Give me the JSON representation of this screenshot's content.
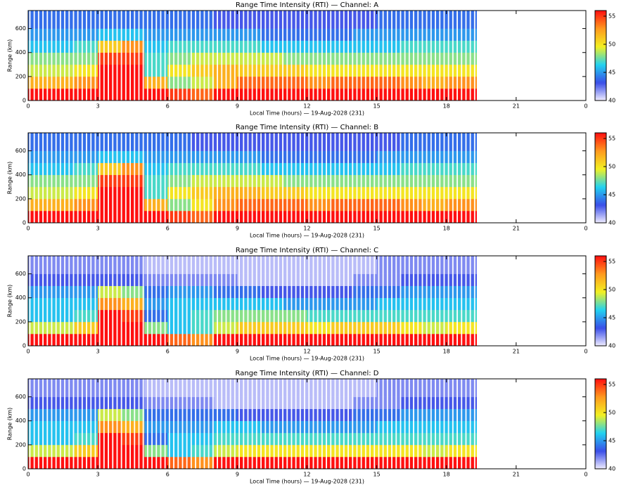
{
  "chart_data": [
    {
      "type": "heatmap",
      "title": "Range Time Intensity (RTI) — Channel: A",
      "xlabel": "Local Time (hours) — 19-Aug-2028 (231)",
      "ylabel": "Range (km)",
      "x_edges": [
        0,
        1,
        2,
        3,
        4,
        5,
        6,
        7,
        8,
        9,
        10,
        11,
        12,
        13,
        14,
        15,
        16,
        17,
        18,
        19,
        19.3
      ],
      "y_edges": [
        0,
        100,
        200,
        300,
        400,
        500,
        600,
        750
      ],
      "values": [
        [
          56,
          56,
          56,
          56,
          56,
          56,
          55,
          54,
          56,
          56,
          56,
          56,
          56,
          56,
          56,
          56,
          56,
          56,
          56,
          56
        ],
        [
          52,
          52,
          53,
          56,
          56,
          52,
          48,
          49,
          52,
          54,
          54,
          54,
          53,
          54,
          54,
          54,
          53,
          52,
          53,
          53
        ],
        [
          49,
          49,
          50,
          56,
          56,
          47,
          50,
          51,
          52,
          51,
          51,
          51,
          50,
          50,
          50,
          50,
          50,
          50,
          50,
          50
        ],
        [
          48,
          48,
          48,
          55,
          55,
          47,
          48,
          49,
          49,
          49,
          49,
          48,
          48,
          48,
          48,
          48,
          48,
          48,
          48,
          48
        ],
        [
          46,
          46,
          47,
          51,
          53,
          46,
          47,
          47,
          47,
          47,
          46,
          46,
          46,
          46,
          46,
          46,
          47,
          47,
          47,
          47
        ],
        [
          45,
          45,
          45,
          46,
          46,
          45,
          45,
          45,
          45,
          45,
          44,
          44,
          44,
          44,
          45,
          45,
          45,
          45,
          45,
          45
        ],
        [
          44,
          44,
          44,
          44,
          44,
          44,
          44,
          44,
          43,
          43,
          43,
          43,
          43,
          43,
          43,
          44,
          44,
          44,
          44,
          44
        ]
      ],
      "xlim": [
        0,
        24
      ],
      "xticks": [
        0,
        3,
        6,
        9,
        12,
        15,
        18,
        21,
        {
          "value": 24,
          "label": "0"
        }
      ],
      "ylim": [
        0,
        750
      ],
      "yticks": [
        0,
        200,
        400,
        600
      ],
      "zlim": [
        40,
        56
      ],
      "zticks": [
        40,
        45,
        50,
        55
      ],
      "colormap": [
        "#f2eeff",
        "#3a4ee8",
        "#22d2f0",
        "#f2f022",
        "#ff9a1e",
        "#ff1010"
      ]
    },
    {
      "type": "heatmap",
      "title": "Range Time Intensity (RTI) — Channel: B",
      "xlabel": "Local Time (hours) — 19-Aug-2028 (231)",
      "ylabel": "Range (km)",
      "x_edges": [
        0,
        1,
        2,
        3,
        4,
        5,
        6,
        7,
        8,
        9,
        10,
        11,
        12,
        13,
        14,
        15,
        16,
        17,
        18,
        19,
        19.3
      ],
      "y_edges": [
        0,
        100,
        200,
        300,
        400,
        500,
        600,
        750
      ],
      "values": [
        [
          56,
          56,
          56,
          56,
          56,
          56,
          55,
          54,
          56,
          56,
          56,
          56,
          56,
          56,
          56,
          56,
          56,
          56,
          56,
          56
        ],
        [
          52,
          52,
          53,
          56,
          56,
          52,
          48,
          50,
          53,
          54,
          54,
          54,
          53,
          54,
          54,
          54,
          53,
          52,
          53,
          53
        ],
        [
          49,
          49,
          50,
          56,
          56,
          47,
          50,
          51,
          52,
          52,
          51,
          51,
          50,
          50,
          50,
          50,
          50,
          50,
          50,
          50
        ],
        [
          48,
          48,
          48,
          55,
          55,
          47,
          48,
          49,
          49,
          49,
          49,
          48,
          48,
          48,
          48,
          48,
          48,
          48,
          48,
          48
        ],
        [
          46,
          46,
          47,
          51,
          53,
          46,
          47,
          47,
          47,
          47,
          46,
          46,
          46,
          46,
          46,
          46,
          47,
          47,
          47,
          47
        ],
        [
          45,
          45,
          45,
          46,
          46,
          45,
          45,
          45,
          45,
          45,
          44,
          44,
          44,
          44,
          44,
          45,
          45,
          45,
          45,
          45
        ],
        [
          44,
          44,
          44,
          44,
          44,
          44,
          44,
          43,
          43,
          43,
          43,
          43,
          43,
          43,
          43,
          43,
          44,
          44,
          44,
          44
        ]
      ],
      "xlim": [
        0,
        24
      ],
      "xticks": [
        0,
        3,
        6,
        9,
        12,
        15,
        18,
        21,
        {
          "value": 24,
          "label": "0"
        }
      ],
      "ylim": [
        0,
        750
      ],
      "yticks": [
        0,
        200,
        400,
        600
      ],
      "zlim": [
        40,
        56
      ],
      "zticks": [
        40,
        45,
        50,
        55
      ],
      "colormap": [
        "#f2eeff",
        "#3a4ee8",
        "#22d2f0",
        "#f2f022",
        "#ff9a1e",
        "#ff1010"
      ]
    },
    {
      "type": "heatmap",
      "title": "Range Time Intensity (RTI) — Channel: C",
      "xlabel": "Local Time (hours) — 19-Aug-2028 (231)",
      "ylabel": "Range (km)",
      "x_edges": [
        0,
        1,
        2,
        3,
        4,
        5,
        6,
        7,
        8,
        9,
        10,
        11,
        12,
        13,
        14,
        15,
        16,
        17,
        18,
        19,
        19.3
      ],
      "y_edges": [
        0,
        100,
        200,
        300,
        400,
        500,
        600,
        750
      ],
      "values": [
        [
          56,
          56,
          56,
          56,
          56,
          56,
          54,
          53,
          56,
          56,
          56,
          56,
          56,
          56,
          56,
          56,
          56,
          56,
          56,
          56
        ],
        [
          49,
          49,
          51,
          56,
          56,
          48,
          46,
          47,
          49,
          51,
          51,
          51,
          50,
          51,
          51,
          51,
          50,
          49,
          50,
          50
        ],
        [
          46,
          46,
          47,
          56,
          55,
          44,
          46,
          47,
          48,
          48,
          48,
          48,
          47,
          47,
          47,
          47,
          47,
          47,
          47,
          47
        ],
        [
          46,
          46,
          46,
          53,
          52,
          45,
          46,
          46,
          46,
          46,
          46,
          45,
          45,
          45,
          45,
          46,
          46,
          46,
          46,
          46
        ],
        [
          45,
          45,
          45,
          49,
          48,
          44,
          45,
          45,
          44,
          44,
          43,
          43,
          43,
          43,
          44,
          44,
          45,
          45,
          45,
          45
        ],
        [
          43,
          43,
          43,
          43,
          43,
          42,
          42,
          42,
          42,
          41,
          41,
          41,
          41,
          41,
          42,
          42,
          43,
          43,
          43,
          43
        ],
        [
          42,
          42,
          42,
          42,
          42,
          41,
          41,
          41,
          41,
          41,
          41,
          41,
          41,
          41,
          41,
          42,
          42,
          42,
          42,
          42
        ]
      ],
      "xlim": [
        0,
        24
      ],
      "xticks": [
        0,
        3,
        6,
        9,
        12,
        15,
        18,
        21,
        {
          "value": 24,
          "label": "0"
        }
      ],
      "ylim": [
        0,
        750
      ],
      "yticks": [
        0,
        200,
        400,
        600
      ],
      "zlim": [
        40,
        56
      ],
      "zticks": [
        40,
        45,
        50,
        55
      ],
      "colormap": [
        "#f2eeff",
        "#3a4ee8",
        "#22d2f0",
        "#f2f022",
        "#ff9a1e",
        "#ff1010"
      ]
    },
    {
      "type": "heatmap",
      "title": "Range Time Intensity (RTI) — Channel: D",
      "xlabel": "Local Time (hours) — 19-Aug-2028 (231)",
      "ylabel": "Range (km)",
      "x_edges": [
        0,
        1,
        2,
        3,
        4,
        5,
        6,
        7,
        8,
        9,
        10,
        11,
        12,
        13,
        14,
        15,
        16,
        17,
        18,
        19,
        19.3
      ],
      "y_edges": [
        0,
        100,
        200,
        300,
        400,
        500,
        600,
        750
      ],
      "values": [
        [
          56,
          56,
          56,
          56,
          56,
          56,
          54,
          53,
          56,
          56,
          56,
          56,
          56,
          56,
          56,
          56,
          56,
          56,
          56,
          56
        ],
        [
          49,
          49,
          51,
          56,
          56,
          48,
          46,
          47,
          49,
          50,
          50,
          50,
          50,
          50,
          50,
          50,
          50,
          49,
          50,
          50
        ],
        [
          46,
          46,
          47,
          56,
          55,
          44,
          46,
          46,
          47,
          47,
          47,
          47,
          47,
          47,
          47,
          47,
          47,
          47,
          47,
          47
        ],
        [
          46,
          46,
          46,
          53,
          52,
          45,
          45,
          45,
          46,
          46,
          45,
          45,
          45,
          45,
          45,
          46,
          46,
          46,
          46,
          46
        ],
        [
          45,
          45,
          45,
          49,
          48,
          44,
          44,
          44,
          44,
          43,
          43,
          43,
          43,
          43,
          44,
          44,
          45,
          45,
          45,
          45
        ],
        [
          43,
          43,
          43,
          43,
          43,
          42,
          42,
          42,
          41,
          41,
          41,
          41,
          41,
          41,
          42,
          42,
          43,
          43,
          43,
          43
        ],
        [
          42,
          42,
          42,
          42,
          42,
          41,
          41,
          41,
          41,
          41,
          41,
          41,
          41,
          41,
          41,
          42,
          42,
          42,
          42,
          42
        ]
      ],
      "xlim": [
        0,
        24
      ],
      "xticks": [
        0,
        3,
        6,
        9,
        12,
        15,
        18,
        21,
        {
          "value": 24,
          "label": "0"
        }
      ],
      "ylim": [
        0,
        750
      ],
      "yticks": [
        0,
        200,
        400,
        600
      ],
      "zlim": [
        40,
        56
      ],
      "zticks": [
        40,
        45,
        50,
        55
      ],
      "colormap": [
        "#f2eeff",
        "#3a4ee8",
        "#22d2f0",
        "#f2f022",
        "#ff9a1e",
        "#ff1010"
      ]
    }
  ]
}
